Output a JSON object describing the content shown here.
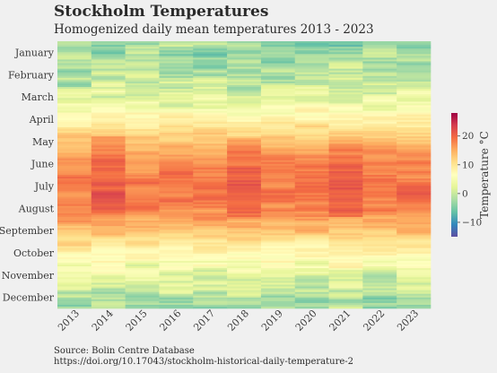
{
  "chart_data": {
    "type": "heatmap",
    "title": "Stockholm Temperatures",
    "subtitle": "Homogenized daily mean temperatures 2013 - 2023",
    "x_categories": [
      "2013",
      "2014",
      "2015",
      "2016",
      "2017",
      "2018",
      "2019",
      "2020",
      "2021",
      "2022",
      "2023"
    ],
    "y_categories": [
      "January",
      "February",
      "March",
      "April",
      "May",
      "June",
      "July",
      "August",
      "September",
      "October",
      "November",
      "December"
    ],
    "colorbar": {
      "label": "Temperature °C",
      "ticks": [
        -10,
        0,
        10,
        20
      ],
      "range": [
        -15,
        28
      ],
      "colormap": "Spectral_r"
    },
    "source_lines": [
      "Source: Bolin Centre Database",
      "https://doi.org/10.17043/stockholm-historical-daily-temperature-2"
    ],
    "colors": {
      "background": "#f0f0f0",
      "cold": "#5e4fa2",
      "neutral": "#ffffbf",
      "hot": "#9e0142"
    }
  }
}
